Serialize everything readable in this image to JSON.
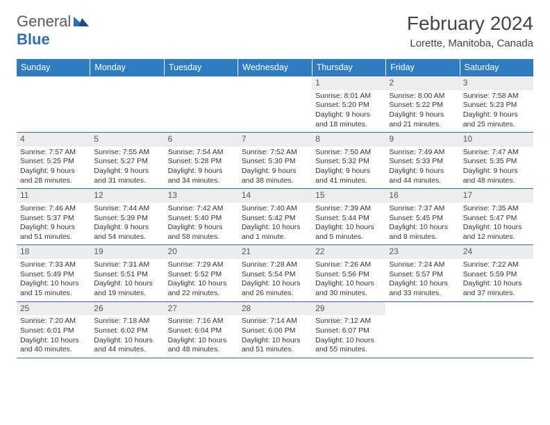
{
  "brand": {
    "part1": "General",
    "part2": "Blue"
  },
  "title": "February 2024",
  "location": "Lorette, Manitoba, Canada",
  "colors": {
    "header_bg": "#2f7bc2",
    "border": "#2f6fae",
    "daynum_bg": "#ededed",
    "text": "#333333"
  },
  "dow": [
    "Sunday",
    "Monday",
    "Tuesday",
    "Wednesday",
    "Thursday",
    "Friday",
    "Saturday"
  ],
  "weeks": [
    [
      null,
      null,
      null,
      null,
      {
        "n": "1",
        "sr": "8:01 AM",
        "ss": "5:20 PM",
        "dl": "9 hours and 18 minutes."
      },
      {
        "n": "2",
        "sr": "8:00 AM",
        "ss": "5:22 PM",
        "dl": "9 hours and 21 minutes."
      },
      {
        "n": "3",
        "sr": "7:58 AM",
        "ss": "5:23 PM",
        "dl": "9 hours and 25 minutes."
      }
    ],
    [
      {
        "n": "4",
        "sr": "7:57 AM",
        "ss": "5:25 PM",
        "dl": "9 hours and 28 minutes."
      },
      {
        "n": "5",
        "sr": "7:55 AM",
        "ss": "5:27 PM",
        "dl": "9 hours and 31 minutes."
      },
      {
        "n": "6",
        "sr": "7:54 AM",
        "ss": "5:28 PM",
        "dl": "9 hours and 34 minutes."
      },
      {
        "n": "7",
        "sr": "7:52 AM",
        "ss": "5:30 PM",
        "dl": "9 hours and 38 minutes."
      },
      {
        "n": "8",
        "sr": "7:50 AM",
        "ss": "5:32 PM",
        "dl": "9 hours and 41 minutes."
      },
      {
        "n": "9",
        "sr": "7:49 AM",
        "ss": "5:33 PM",
        "dl": "9 hours and 44 minutes."
      },
      {
        "n": "10",
        "sr": "7:47 AM",
        "ss": "5:35 PM",
        "dl": "9 hours and 48 minutes."
      }
    ],
    [
      {
        "n": "11",
        "sr": "7:46 AM",
        "ss": "5:37 PM",
        "dl": "9 hours and 51 minutes."
      },
      {
        "n": "12",
        "sr": "7:44 AM",
        "ss": "5:39 PM",
        "dl": "9 hours and 54 minutes."
      },
      {
        "n": "13",
        "sr": "7:42 AM",
        "ss": "5:40 PM",
        "dl": "9 hours and 58 minutes."
      },
      {
        "n": "14",
        "sr": "7:40 AM",
        "ss": "5:42 PM",
        "dl": "10 hours and 1 minute."
      },
      {
        "n": "15",
        "sr": "7:39 AM",
        "ss": "5:44 PM",
        "dl": "10 hours and 5 minutes."
      },
      {
        "n": "16",
        "sr": "7:37 AM",
        "ss": "5:45 PM",
        "dl": "10 hours and 8 minutes."
      },
      {
        "n": "17",
        "sr": "7:35 AM",
        "ss": "5:47 PM",
        "dl": "10 hours and 12 minutes."
      }
    ],
    [
      {
        "n": "18",
        "sr": "7:33 AM",
        "ss": "5:49 PM",
        "dl": "10 hours and 15 minutes."
      },
      {
        "n": "19",
        "sr": "7:31 AM",
        "ss": "5:51 PM",
        "dl": "10 hours and 19 minutes."
      },
      {
        "n": "20",
        "sr": "7:29 AM",
        "ss": "5:52 PM",
        "dl": "10 hours and 22 minutes."
      },
      {
        "n": "21",
        "sr": "7:28 AM",
        "ss": "5:54 PM",
        "dl": "10 hours and 26 minutes."
      },
      {
        "n": "22",
        "sr": "7:26 AM",
        "ss": "5:56 PM",
        "dl": "10 hours and 30 minutes."
      },
      {
        "n": "23",
        "sr": "7:24 AM",
        "ss": "5:57 PM",
        "dl": "10 hours and 33 minutes."
      },
      {
        "n": "24",
        "sr": "7:22 AM",
        "ss": "5:59 PM",
        "dl": "10 hours and 37 minutes."
      }
    ],
    [
      {
        "n": "25",
        "sr": "7:20 AM",
        "ss": "6:01 PM",
        "dl": "10 hours and 40 minutes."
      },
      {
        "n": "26",
        "sr": "7:18 AM",
        "ss": "6:02 PM",
        "dl": "10 hours and 44 minutes."
      },
      {
        "n": "27",
        "sr": "7:16 AM",
        "ss": "6:04 PM",
        "dl": "10 hours and 48 minutes."
      },
      {
        "n": "28",
        "sr": "7:14 AM",
        "ss": "6:06 PM",
        "dl": "10 hours and 51 minutes."
      },
      {
        "n": "29",
        "sr": "7:12 AM",
        "ss": "6:07 PM",
        "dl": "10 hours and 55 minutes."
      },
      null,
      null
    ]
  ],
  "labels": {
    "sunrise": "Sunrise: ",
    "sunset": "Sunset: ",
    "daylight": "Daylight: "
  }
}
